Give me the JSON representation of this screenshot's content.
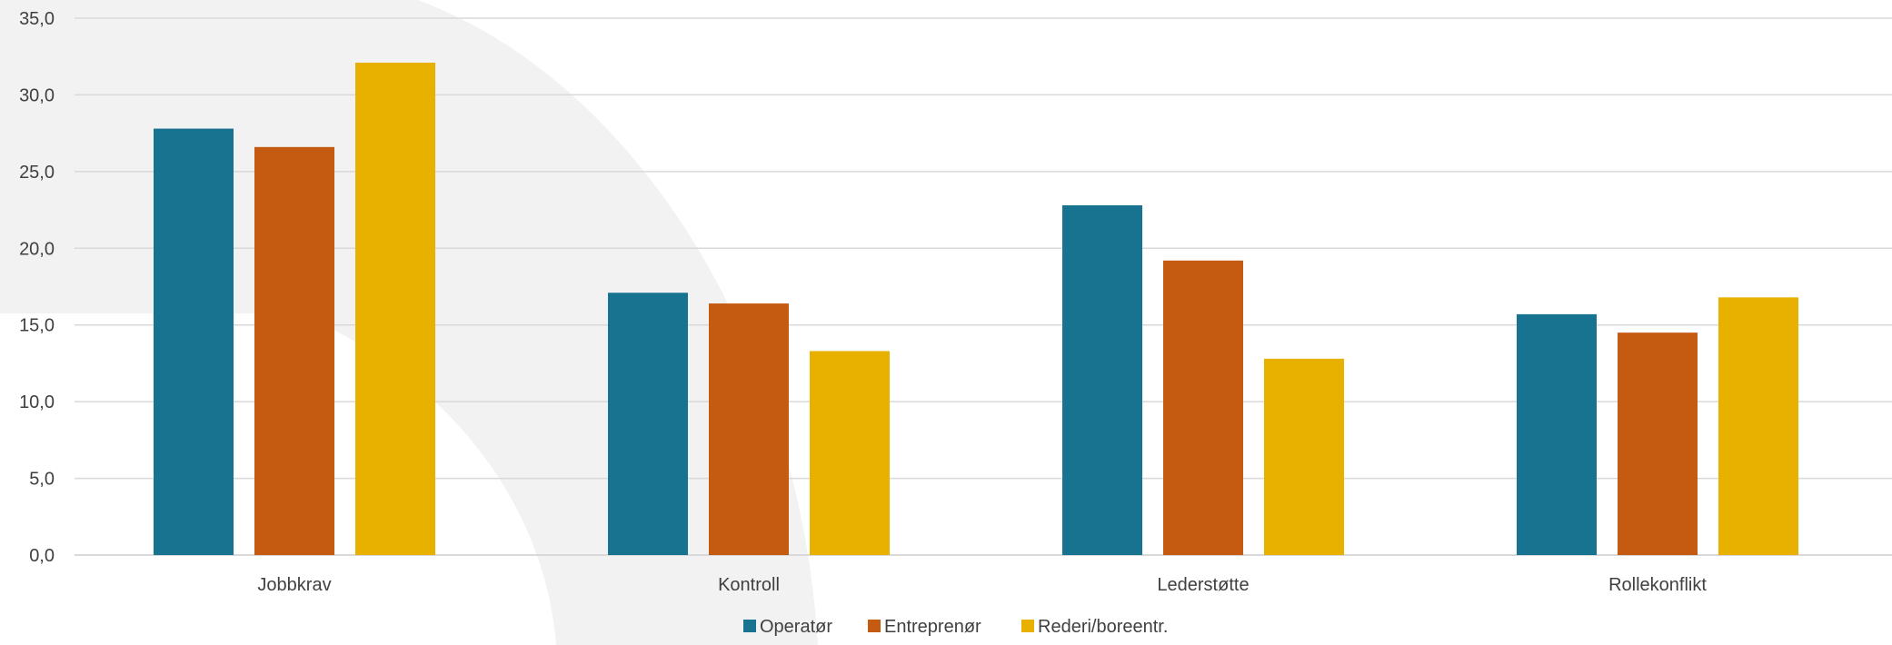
{
  "chart_data": {
    "type": "bar",
    "title": "",
    "xlabel": "",
    "ylabel": "",
    "categories": [
      "Jobbkrav",
      "Kontroll",
      "Lederstøtte",
      "Rollekonflikt"
    ],
    "series": [
      {
        "name": "Operatør",
        "color": "#17738F",
        "values": [
          27.8,
          17.1,
          22.8,
          15.7
        ]
      },
      {
        "name": "Entreprenør",
        "color": "#C55A11",
        "values": [
          26.6,
          16.4,
          19.2,
          14.5
        ]
      },
      {
        "name": "Rederi/boreentr.",
        "color": "#E8B100",
        "values": [
          32.1,
          13.3,
          12.8,
          16.8
        ]
      }
    ],
    "ylim": [
      0,
      35
    ],
    "yticks": [
      "0,0",
      "5,0",
      "10,0",
      "15,0",
      "20,0",
      "25,0",
      "30,0",
      "35,0"
    ],
    "grid": true,
    "legend_position": "bottom"
  }
}
